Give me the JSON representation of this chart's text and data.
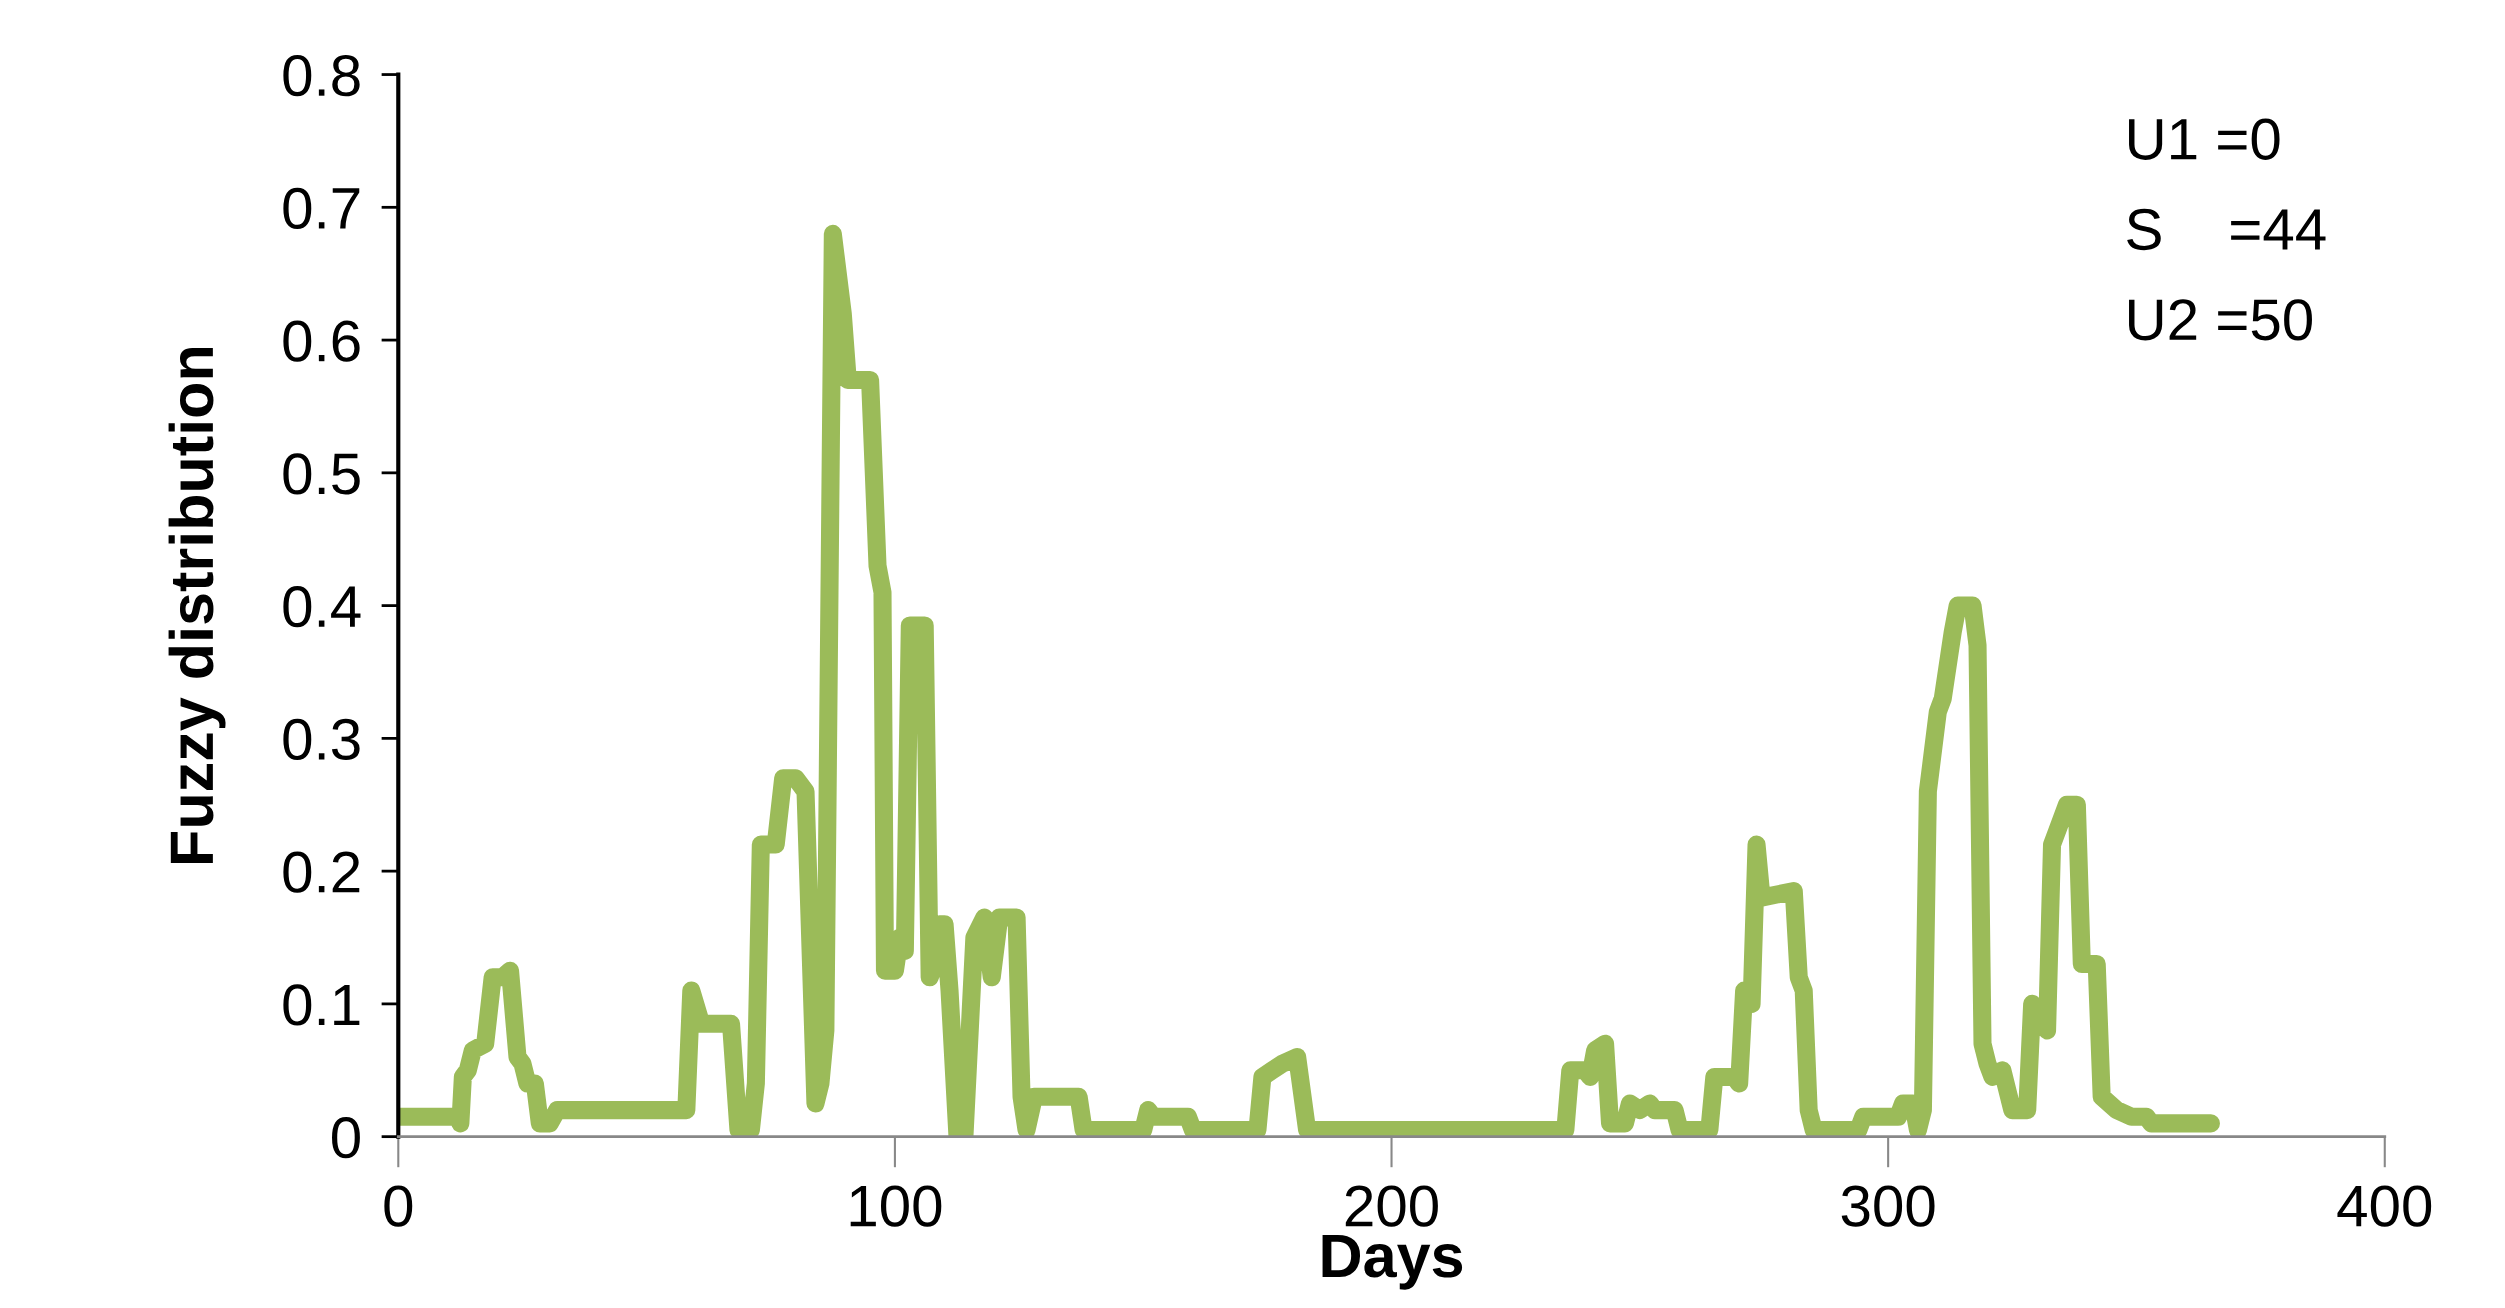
{
  "chart_data": {
    "type": "line",
    "xlabel": "Days",
    "ylabel": "Fuzzy distribution",
    "annotations": [
      "U1 =0",
      "S    =44",
      "U2 =50"
    ],
    "xlim": [
      0,
      400
    ],
    "xticks": [
      0,
      100,
      200,
      300,
      400
    ],
    "ylim": [
      0,
      0.8
    ],
    "yticks": [
      0,
      0.1,
      0.2,
      0.3,
      0.4,
      0.5,
      0.6,
      0.7,
      0.8
    ],
    "grid": false,
    "line_style": "solid",
    "series": [
      {
        "color": "#9bbb59",
        "x": [
          0,
          12,
          12.5,
          13,
          14,
          15,
          17.5,
          19,
          21,
          22.5,
          24,
          25,
          26,
          27.5,
          28.5,
          30.5,
          32,
          57,
          58,
          59,
          61,
          67,
          68.5,
          71,
          72,
          73,
          75,
          76,
          77.5,
          80,
          82,
          84,
          85,
          86,
          87.5,
          89.5,
          90.5,
          95,
          96.5,
          97.5,
          98,
          100,
          101,
          102,
          103,
          106,
          107,
          108,
          109,
          110,
          111,
          112.6,
          114,
          116,
          118,
          119.5,
          121,
          124.5,
          125.5,
          126.5,
          128,
          137,
          138,
          150,
          151,
          152,
          159,
          160,
          173,
          174,
          176,
          178,
          181,
          183,
          235,
          236,
          239,
          240,
          241,
          243,
          244,
          247,
          248,
          250,
          252,
          253,
          257,
          258,
          264,
          265,
          269,
          270,
          271,
          272.5,
          273.5,
          274.5,
          281,
          282,
          283,
          284,
          285,
          294,
          295,
          302,
          303,
          305,
          306,
          307,
          308,
          310,
          311,
          313,
          314,
          317,
          318,
          319,
          320,
          321,
          323,
          325,
          328,
          329,
          332,
          333,
          334,
          336,
          338,
          339,
          342,
          343,
          346,
          349,
          352,
          353,
          365
        ],
        "values": [
          0.015,
          0.015,
          0.01,
          0.045,
          0.05,
          0.065,
          0.07,
          0.12,
          0.12,
          0.125,
          0.06,
          0.055,
          0.04,
          0.04,
          0.01,
          0.01,
          0.02,
          0.02,
          0.02,
          0.11,
          0.085,
          0.085,
          0.005,
          0.005,
          0.04,
          0.22,
          0.22,
          0.22,
          0.27,
          0.27,
          0.26,
          0.025,
          0.04,
          0.08,
          0.68,
          0.62,
          0.57,
          0.57,
          0.43,
          0.41,
          0.125,
          0.125,
          0.15,
          0.14,
          0.385,
          0.385,
          0.12,
          0.13,
          0.16,
          0.16,
          0.11,
          0.0,
          0.0,
          0.15,
          0.165,
          0.12,
          0.165,
          0.165,
          0.03,
          0.005,
          0.03,
          0.03,
          0.005,
          0.005,
          0.02,
          0.015,
          0.015,
          0.005,
          0.005,
          0.045,
          0.05,
          0.055,
          0.06,
          0.005,
          0.005,
          0.05,
          0.05,
          0.045,
          0.065,
          0.07,
          0.01,
          0.01,
          0.025,
          0.02,
          0.025,
          0.02,
          0.02,
          0.005,
          0.005,
          0.045,
          0.045,
          0.04,
          0.11,
          0.1,
          0.22,
          0.18,
          0.185,
          0.12,
          0.11,
          0.02,
          0.005,
          0.005,
          0.015,
          0.015,
          0.025,
          0.025,
          0.005,
          0.02,
          0.26,
          0.32,
          0.33,
          0.38,
          0.4,
          0.4,
          0.37,
          0.07,
          0.055,
          0.045,
          0.05,
          0.02,
          0.02,
          0.1,
          0.08,
          0.22,
          0.23,
          0.25,
          0.25,
          0.13,
          0.13,
          0.03,
          0.02,
          0.015,
          0.015,
          0.01,
          0.01
        ]
      }
    ]
  }
}
